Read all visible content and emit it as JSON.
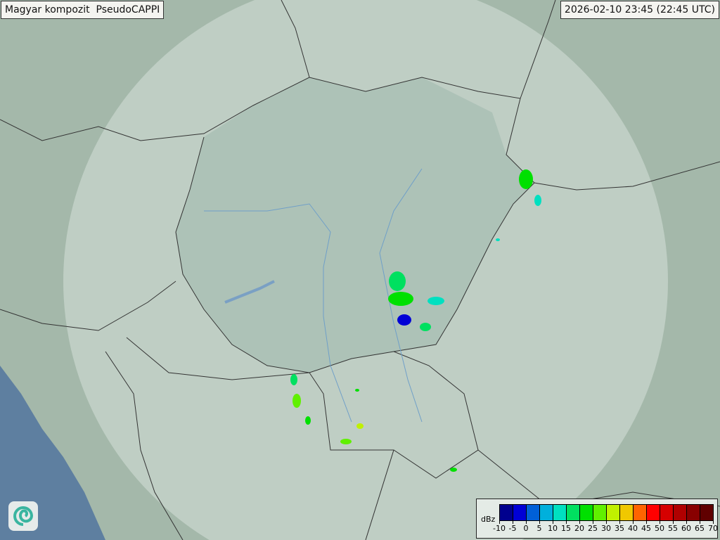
{
  "header": {
    "title": "Magyar kompozit  PseudoCAPPI",
    "timestamp": "2026-02-10 23:45 (22:45 UTC)"
  },
  "legend": {
    "unit": "dBz",
    "labels": [
      "-10",
      "-5",
      "0",
      "5",
      "10",
      "15",
      "20",
      "25",
      "30",
      "35",
      "40",
      "45",
      "50",
      "55",
      "60",
      "65",
      "70"
    ],
    "colors": [
      "#00008e",
      "#0000d6",
      "#0060d8",
      "#00b0dc",
      "#00e0c0",
      "#00e060",
      "#00e000",
      "#60f000",
      "#c0f000",
      "#f0c800",
      "#ff6400",
      "#ff0000",
      "#d60000",
      "#b00000",
      "#880000",
      "#600000"
    ]
  },
  "map": {
    "land_color": "#a9bfb0",
    "coverage_color": "#dfe9e4",
    "sea_color": "#5e7fa0",
    "border_color": "#333333",
    "river_color": "#6f9fc8"
  },
  "logo": {
    "icon": "swirl-logo-icon"
  }
}
